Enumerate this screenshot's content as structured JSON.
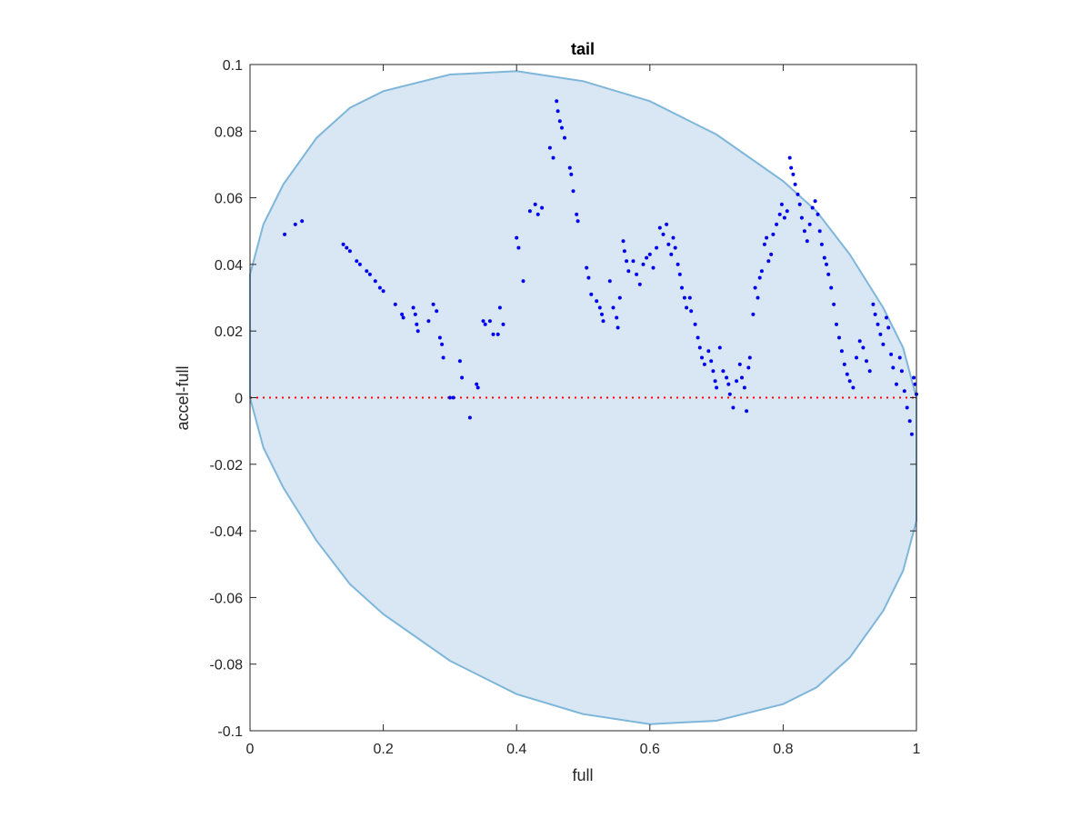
{
  "chart_data": {
    "type": "scatter",
    "title": "tail",
    "xlabel": "full",
    "ylabel": "accel-full",
    "xlim": [
      0,
      1
    ],
    "ylim": [
      -0.1,
      0.1
    ],
    "xticks": [
      0,
      0.2,
      0.4,
      0.6,
      0.8,
      1
    ],
    "xtick_labels": [
      "0",
      "0.2",
      "0.4",
      "0.6",
      "0.8",
      "1"
    ],
    "yticks": [
      -0.1,
      -0.08,
      -0.06,
      -0.04,
      -0.02,
      0,
      0.02,
      0.04,
      0.06,
      0.08,
      0.1
    ],
    "ytick_labels": [
      "-0.1",
      "-0.08",
      "-0.06",
      "-0.04",
      "-0.02",
      "0",
      "0.02",
      "0.04",
      "0.06",
      "0.08",
      "0.1"
    ],
    "grid": false,
    "reference_line": {
      "y": 0,
      "style": "dotted",
      "color": "#ff0000"
    },
    "region": {
      "shape": "ellipse",
      "fill_color": "#d8e7f3",
      "edge_color": "#7eb6da",
      "boundary": [
        [
          0,
          0.037
        ],
        [
          0.02,
          0.052
        ],
        [
          0.05,
          0.064
        ],
        [
          0.1,
          0.078
        ],
        [
          0.15,
          0.087
        ],
        [
          0.2,
          0.092
        ],
        [
          0.3,
          0.097
        ],
        [
          0.4,
          0.098
        ],
        [
          0.5,
          0.095
        ],
        [
          0.6,
          0.089
        ],
        [
          0.7,
          0.079
        ],
        [
          0.8,
          0.065
        ],
        [
          0.85,
          0.056
        ],
        [
          0.9,
          0.043
        ],
        [
          0.95,
          0.027
        ],
        [
          0.98,
          0.015
        ],
        [
          1,
          0
        ],
        [
          1,
          -0.037
        ],
        [
          0.98,
          -0.052
        ],
        [
          0.95,
          -0.064
        ],
        [
          0.9,
          -0.078
        ],
        [
          0.85,
          -0.087
        ],
        [
          0.8,
          -0.092
        ],
        [
          0.7,
          -0.097
        ],
        [
          0.6,
          -0.098
        ],
        [
          0.5,
          -0.095
        ],
        [
          0.4,
          -0.089
        ],
        [
          0.3,
          -0.079
        ],
        [
          0.2,
          -0.065
        ],
        [
          0.15,
          -0.056
        ],
        [
          0.1,
          -0.043
        ],
        [
          0.05,
          -0.027
        ],
        [
          0.02,
          -0.015
        ],
        [
          0,
          0
        ]
      ]
    },
    "series": [
      {
        "color": "#0000ee",
        "points": [
          [
            0.052,
            0.049
          ],
          [
            0.068,
            0.052
          ],
          [
            0.078,
            0.053
          ],
          [
            0.14,
            0.046
          ],
          [
            0.145,
            0.045
          ],
          [
            0.15,
            0.044
          ],
          [
            0.16,
            0.041
          ],
          [
            0.165,
            0.04
          ],
          [
            0.175,
            0.038
          ],
          [
            0.18,
            0.037
          ],
          [
            0.188,
            0.035
          ],
          [
            0.195,
            0.033
          ],
          [
            0.2,
            0.032
          ],
          [
            0.218,
            0.028
          ],
          [
            0.228,
            0.025
          ],
          [
            0.23,
            0.024
          ],
          [
            0.245,
            0.027
          ],
          [
            0.248,
            0.025
          ],
          [
            0.25,
            0.022
          ],
          [
            0.252,
            0.02
          ],
          [
            0.268,
            0.023
          ],
          [
            0.275,
            0.028
          ],
          [
            0.28,
            0.026
          ],
          [
            0.285,
            0.018
          ],
          [
            0.288,
            0.016
          ],
          [
            0.29,
            0.012
          ],
          [
            0.3,
            0.0
          ],
          [
            0.305,
            0.0
          ],
          [
            0.315,
            0.011
          ],
          [
            0.318,
            0.006
          ],
          [
            0.33,
            -0.006
          ],
          [
            0.34,
            0.004
          ],
          [
            0.342,
            0.003
          ],
          [
            0.35,
            0.023
          ],
          [
            0.353,
            0.022
          ],
          [
            0.36,
            0.023
          ],
          [
            0.365,
            0.019
          ],
          [
            0.372,
            0.019
          ],
          [
            0.375,
            0.027
          ],
          [
            0.38,
            0.022
          ],
          [
            0.4,
            0.048
          ],
          [
            0.403,
            0.045
          ],
          [
            0.41,
            0.035
          ],
          [
            0.42,
            0.056
          ],
          [
            0.428,
            0.058
          ],
          [
            0.432,
            0.055
          ],
          [
            0.438,
            0.057
          ],
          [
            0.45,
            0.075
          ],
          [
            0.455,
            0.072
          ],
          [
            0.46,
            0.089
          ],
          [
            0.462,
            0.086
          ],
          [
            0.465,
            0.083
          ],
          [
            0.468,
            0.081
          ],
          [
            0.472,
            0.078
          ],
          [
            0.48,
            0.069
          ],
          [
            0.482,
            0.067
          ],
          [
            0.485,
            0.062
          ],
          [
            0.49,
            0.055
          ],
          [
            0.492,
            0.053
          ],
          [
            0.505,
            0.039
          ],
          [
            0.508,
            0.036
          ],
          [
            0.512,
            0.031
          ],
          [
            0.52,
            0.029
          ],
          [
            0.525,
            0.027
          ],
          [
            0.528,
            0.025
          ],
          [
            0.53,
            0.023
          ],
          [
            0.54,
            0.035
          ],
          [
            0.545,
            0.027
          ],
          [
            0.55,
            0.024
          ],
          [
            0.552,
            0.021
          ],
          [
            0.555,
            0.03
          ],
          [
            0.56,
            0.047
          ],
          [
            0.562,
            0.044
          ],
          [
            0.565,
            0.041
          ],
          [
            0.568,
            0.038
          ],
          [
            0.575,
            0.041
          ],
          [
            0.58,
            0.037
          ],
          [
            0.585,
            0.034
          ],
          [
            0.59,
            0.04
          ],
          [
            0.595,
            0.042
          ],
          [
            0.6,
            0.043
          ],
          [
            0.605,
            0.039
          ],
          [
            0.61,
            0.045
          ],
          [
            0.615,
            0.051
          ],
          [
            0.62,
            0.049
          ],
          [
            0.625,
            0.052
          ],
          [
            0.628,
            0.046
          ],
          [
            0.632,
            0.043
          ],
          [
            0.635,
            0.048
          ],
          [
            0.638,
            0.045
          ],
          [
            0.642,
            0.04
          ],
          [
            0.645,
            0.037
          ],
          [
            0.648,
            0.033
          ],
          [
            0.652,
            0.03
          ],
          [
            0.655,
            0.027
          ],
          [
            0.66,
            0.03
          ],
          [
            0.662,
            0.026
          ],
          [
            0.668,
            0.022
          ],
          [
            0.672,
            0.018
          ],
          [
            0.675,
            0.015
          ],
          [
            0.678,
            0.012
          ],
          [
            0.682,
            0.01
          ],
          [
            0.688,
            0.014
          ],
          [
            0.692,
            0.011
          ],
          [
            0.695,
            0.008
          ],
          [
            0.698,
            0.005
          ],
          [
            0.7,
            0.003
          ],
          [
            0.705,
            0.015
          ],
          [
            0.71,
            0.008
          ],
          [
            0.715,
            0.006
          ],
          [
            0.718,
            0.004
          ],
          [
            0.72,
            0.001
          ],
          [
            0.725,
            -0.003
          ],
          [
            0.73,
            0.005
          ],
          [
            0.735,
            0.01
          ],
          [
            0.738,
            0.006
          ],
          [
            0.742,
            0.003
          ],
          [
            0.745,
            -0.004
          ],
          [
            0.748,
            0.009
          ],
          [
            0.75,
            0.012
          ],
          [
            0.755,
            0.025
          ],
          [
            0.758,
            0.033
          ],
          [
            0.762,
            0.03
          ],
          [
            0.765,
            0.036
          ],
          [
            0.768,
            0.038
          ],
          [
            0.772,
            0.046
          ],
          [
            0.775,
            0.048
          ],
          [
            0.778,
            0.041
          ],
          [
            0.782,
            0.043
          ],
          [
            0.785,
            0.049
          ],
          [
            0.79,
            0.052
          ],
          [
            0.795,
            0.055
          ],
          [
            0.798,
            0.058
          ],
          [
            0.802,
            0.054
          ],
          [
            0.806,
            0.056
          ],
          [
            0.81,
            0.072
          ],
          [
            0.812,
            0.069
          ],
          [
            0.815,
            0.067
          ],
          [
            0.818,
            0.064
          ],
          [
            0.822,
            0.061
          ],
          [
            0.825,
            0.058
          ],
          [
            0.828,
            0.054
          ],
          [
            0.832,
            0.05
          ],
          [
            0.836,
            0.047
          ],
          [
            0.84,
            0.052
          ],
          [
            0.844,
            0.057
          ],
          [
            0.848,
            0.059
          ],
          [
            0.852,
            0.055
          ],
          [
            0.855,
            0.05
          ],
          [
            0.858,
            0.046
          ],
          [
            0.862,
            0.042
          ],
          [
            0.865,
            0.04
          ],
          [
            0.868,
            0.037
          ],
          [
            0.872,
            0.033
          ],
          [
            0.876,
            0.028
          ],
          [
            0.88,
            0.022
          ],
          [
            0.884,
            0.018
          ],
          [
            0.888,
            0.014
          ],
          [
            0.892,
            0.01
          ],
          [
            0.896,
            0.007
          ],
          [
            0.9,
            0.005
          ],
          [
            0.905,
            0.003
          ],
          [
            0.91,
            0.012
          ],
          [
            0.915,
            0.017
          ],
          [
            0.92,
            0.015
          ],
          [
            0.925,
            0.011
          ],
          [
            0.93,
            0.008
          ],
          [
            0.935,
            0.028
          ],
          [
            0.938,
            0.025
          ],
          [
            0.942,
            0.022
          ],
          [
            0.946,
            0.019
          ],
          [
            0.95,
            0.016
          ],
          [
            0.955,
            0.024
          ],
          [
            0.958,
            0.021
          ],
          [
            0.962,
            0.013
          ],
          [
            0.965,
            0.009
          ],
          [
            0.97,
            0.004
          ],
          [
            0.975,
            0.012
          ],
          [
            0.978,
            0.008
          ],
          [
            0.982,
            0.002
          ],
          [
            0.986,
            -0.003
          ],
          [
            0.99,
            -0.007
          ],
          [
            0.993,
            -0.011
          ],
          [
            0.996,
            0.006
          ],
          [
            0.998,
            0.004
          ],
          [
            1.0,
            0.001
          ]
        ]
      }
    ]
  }
}
